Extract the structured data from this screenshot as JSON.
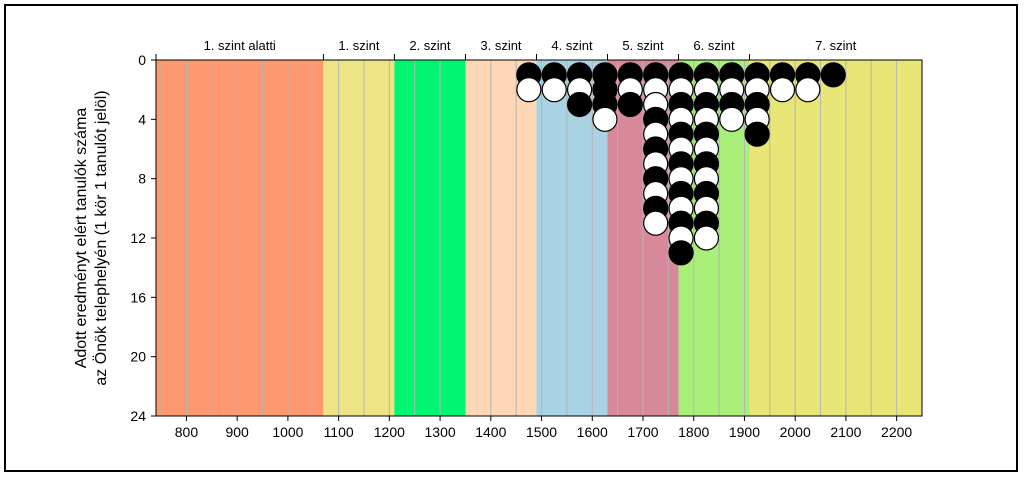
{
  "chart_data": {
    "type": "scatter",
    "ylabel": [
      "Adott eredményt elért tanulók száma",
      "az Önök telephelyén (1 kör 1 tanulót jelöl)"
    ],
    "xlim": [
      740,
      2250
    ],
    "ylim": [
      0,
      24
    ],
    "yticks": [
      0,
      4,
      8,
      12,
      16,
      20,
      24
    ],
    "xticks": [
      800,
      900,
      1000,
      1100,
      1200,
      1300,
      1400,
      1500,
      1600,
      1700,
      1800,
      1900,
      2000,
      2100,
      2200
    ],
    "grid": true,
    "bands": [
      {
        "label": "1. szint alatti",
        "from": 740,
        "to": 1070,
        "color": "#fd9870"
      },
      {
        "label": "1. szint",
        "from": 1070,
        "to": 1210,
        "color": "#ede485"
      },
      {
        "label": "2. szint",
        "from": 1210,
        "to": 1350,
        "color": "#00f571"
      },
      {
        "label": "3. szint",
        "from": 1350,
        "to": 1490,
        "color": "#fed7b6"
      },
      {
        "label": "4. szint",
        "from": 1490,
        "to": 1630,
        "color": "#a9d3e2"
      },
      {
        "label": "5. szint",
        "from": 1630,
        "to": 1770,
        "color": "#d88999"
      },
      {
        "label": "6. szint",
        "from": 1770,
        "to": 1910,
        "color": "#a9ef79"
      },
      {
        "label": "7. szint",
        "from": 1910,
        "to": 2250,
        "color": "#e9e678"
      }
    ],
    "columns": [
      {
        "x": 1475,
        "pattern": "BW"
      },
      {
        "x": 1525,
        "pattern": "BW"
      },
      {
        "x": 1575,
        "pattern": "BWB"
      },
      {
        "x": 1625,
        "pattern": "BBBW"
      },
      {
        "x": 1675,
        "pattern": "BWB"
      },
      {
        "x": 1725,
        "pattern": "BWWBWBWBWBW"
      },
      {
        "x": 1775,
        "pattern": "BWBWBWBWBWBWB"
      },
      {
        "x": 1825,
        "pattern": "BWBWBWBWBWBW"
      },
      {
        "x": 1875,
        "pattern": "BWBW"
      },
      {
        "x": 1925,
        "pattern": "BWBWB"
      },
      {
        "x": 1975,
        "pattern": "BW"
      },
      {
        "x": 2025,
        "pattern": "BW"
      },
      {
        "x": 2075,
        "pattern": "B"
      }
    ]
  }
}
